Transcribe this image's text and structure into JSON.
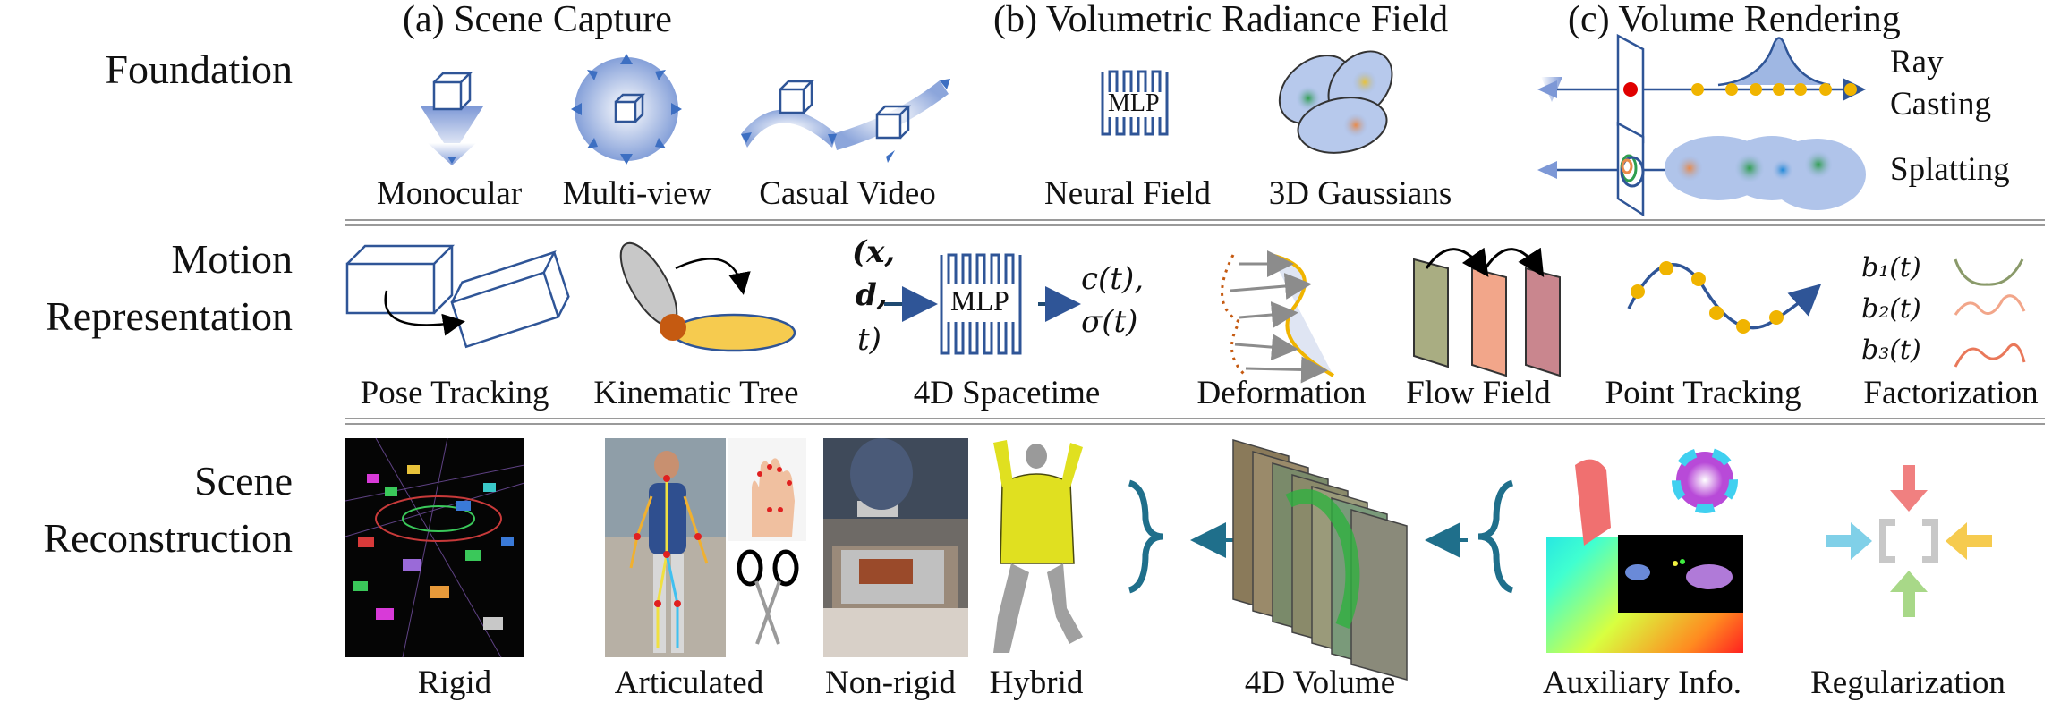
{
  "rows": {
    "foundation": "Foundation",
    "motion_line1": "Motion",
    "motion_line2": "Representation",
    "scene_line1": "Scene",
    "scene_line2": "Reconstruction"
  },
  "foundation": {
    "scene_capture_title": "(a) Scene Capture",
    "radiance_title": "(b) Volumetric Radiance Field",
    "rendering_title": "(c) Volume Rendering",
    "monocular": "Monocular",
    "multiview": "Multi-view",
    "casual_video": "Casual Video",
    "neural_field": "Neural Field",
    "gaussians": "3D Gaussians",
    "mlp": "MLP",
    "ray_line1": "Ray",
    "ray_line2": "Casting",
    "splatting": "Splatting"
  },
  "motion": {
    "pose_tracking": "Pose Tracking",
    "kinematic_tree": "Kinematic Tree",
    "spacetime": "4D Spacetime",
    "deformation": "Deformation",
    "flow_field": "Flow Field",
    "point_tracking": "Point Tracking",
    "factorization": "Factorization",
    "mlp": "MLP",
    "input_open": "(x,",
    "input_d": "d,",
    "input_t": "t)",
    "out_c": "c(t),",
    "out_sigma": "σ(t)",
    "b1": "b₁(t)",
    "b2": "b₂(t)",
    "b3": "b₃(t)"
  },
  "scene": {
    "rigid": "Rigid",
    "articulated": "Articulated",
    "nonrigid": "Non-rigid",
    "hybrid": "Hybrid",
    "volume": "4D Volume",
    "auxiliary": "Auxiliary Info.",
    "regularization": "Regularization"
  },
  "colors": {
    "blue": "#2f5597",
    "teal": "#1f6f8b",
    "orange_dot": "#f0b400",
    "red_dot": "#e00000",
    "gaussian_fill": "#9fb7e3"
  }
}
